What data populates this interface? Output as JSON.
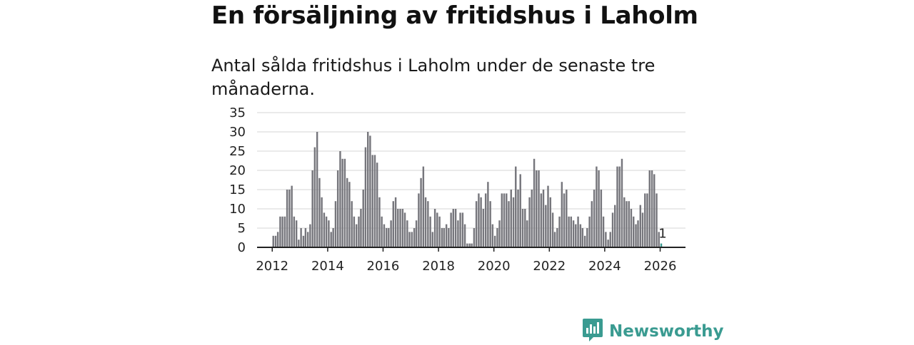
{
  "title": "En försäljning av fritidshus i Laholm",
  "subtitle": "Antal sålda fritidshus i Laholm under de senaste tre månaderna.",
  "brand": {
    "name": "Newsworthy",
    "icon": "bar-chart-speech-icon",
    "color": "#3a9b91"
  },
  "colors": {
    "bar": "#76767c",
    "highlight": "#3a9b91",
    "grid": "#dddddd",
    "axis": "#222222"
  },
  "chart_data": {
    "type": "bar",
    "title": "",
    "xlabel": "",
    "ylabel": "",
    "ylim": [
      0,
      35
    ],
    "yticks": [
      0,
      5,
      10,
      15,
      20,
      25,
      30,
      35
    ],
    "xticks": [
      "2012",
      "2014",
      "2016",
      "2018",
      "2020",
      "2022",
      "2024",
      "2026"
    ],
    "start": "2012-01",
    "grid": true,
    "legend": "none",
    "highlight_label": "1",
    "series": [
      {
        "values": [
          3,
          3,
          4,
          8,
          8,
          8,
          15,
          15,
          16,
          8,
          7,
          2,
          5,
          3,
          5,
          4,
          6,
          20,
          26,
          30,
          18,
          13,
          9,
          8,
          7,
          4,
          5,
          12,
          20,
          25,
          23,
          23,
          18,
          17,
          12,
          8,
          6,
          8,
          10,
          15,
          26,
          30,
          29,
          24,
          24,
          22,
          13,
          8,
          6,
          5,
          5,
          7,
          12,
          13,
          10,
          10,
          10,
          9,
          7,
          4,
          4,
          5,
          7,
          14,
          18,
          21,
          13,
          12,
          8,
          4,
          10,
          9,
          8,
          5,
          5,
          6,
          5,
          9,
          10,
          10,
          7,
          9,
          9,
          6,
          1,
          1,
          1,
          5,
          12,
          14,
          13,
          10,
          14,
          17,
          12,
          6,
          3,
          5,
          7,
          14,
          14,
          14,
          12,
          15,
          13,
          21,
          15,
          19,
          10,
          10,
          7,
          13,
          15,
          23,
          20,
          20,
          14,
          15,
          11,
          16,
          13,
          9,
          4,
          5,
          8,
          17,
          14,
          15,
          8,
          8,
          7,
          6,
          8,
          6,
          5,
          3,
          5,
          8,
          12,
          15,
          21,
          20,
          15,
          8,
          4,
          2,
          4,
          9,
          11,
          21,
          21,
          23,
          13,
          12,
          12,
          10,
          8,
          6,
          7,
          11,
          9,
          14,
          14,
          20,
          20,
          19,
          14,
          4,
          1
        ]
      }
    ]
  }
}
